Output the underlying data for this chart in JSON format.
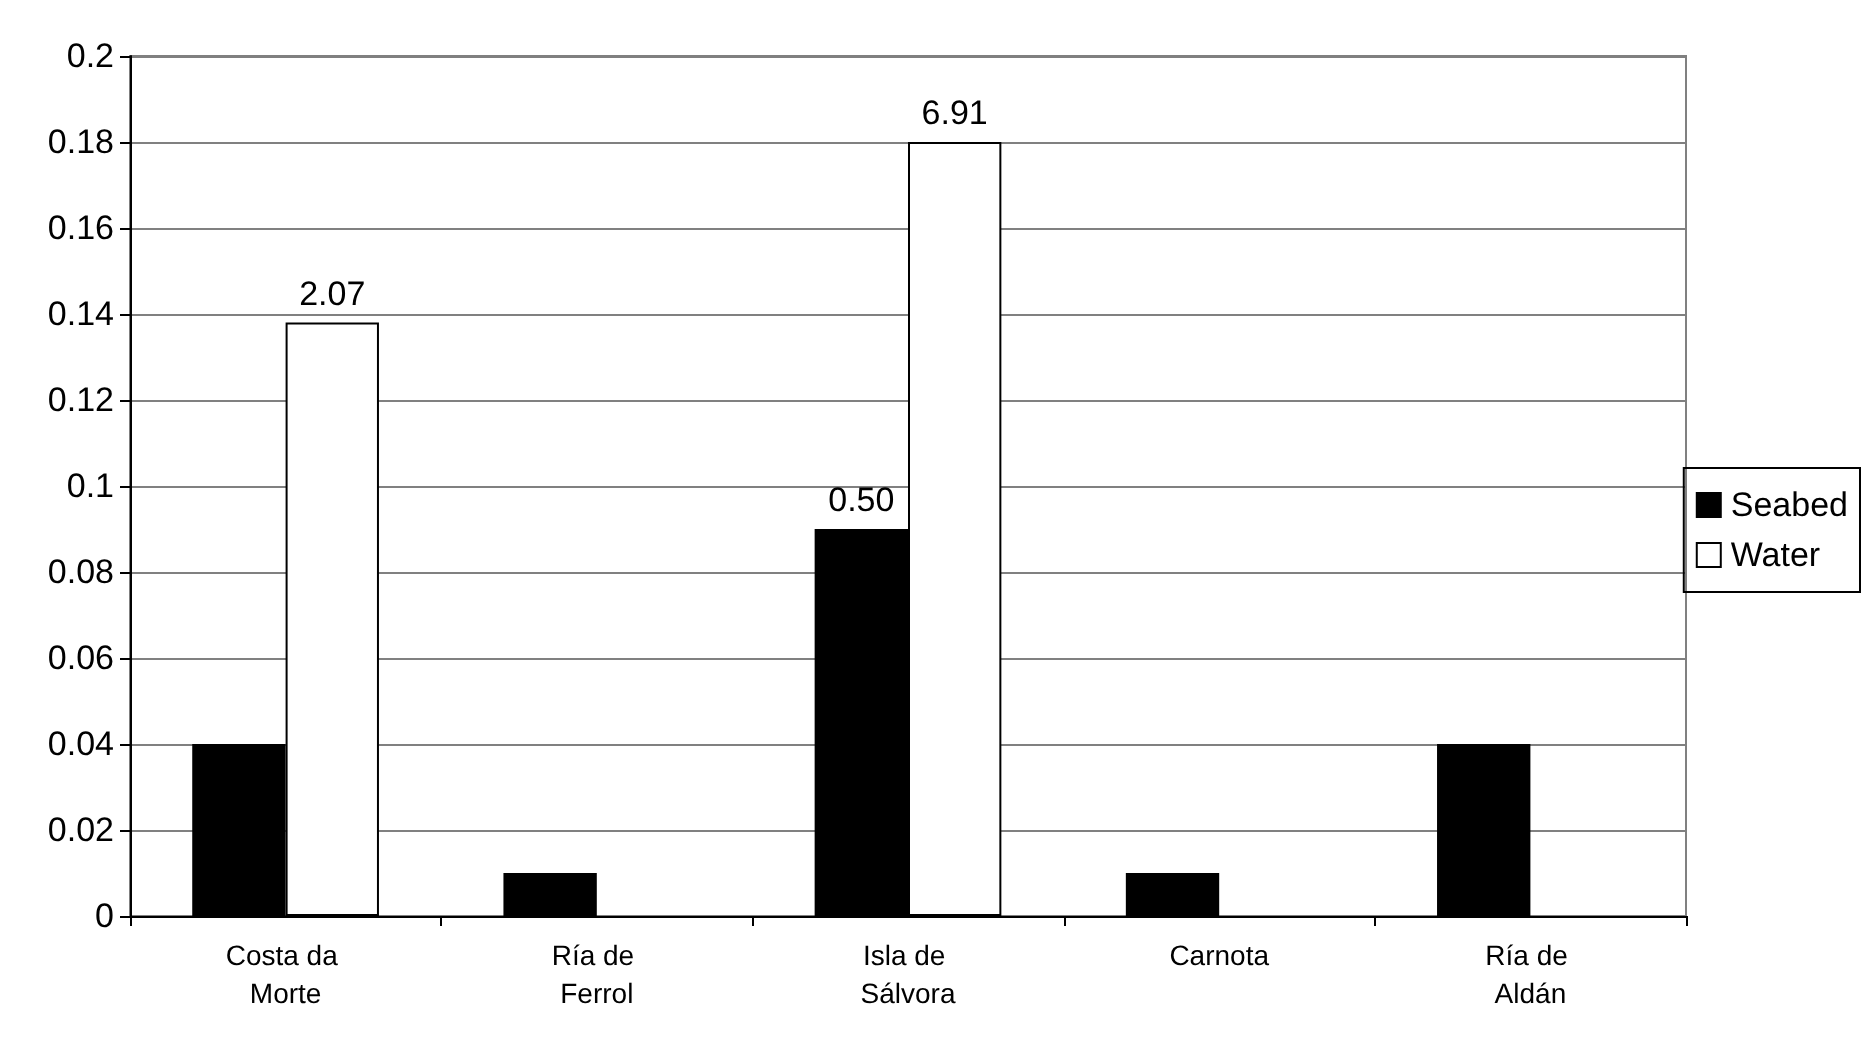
{
  "chart_data": {
    "type": "bar",
    "categories": [
      "Costa da Morte",
      "Ría de Ferrol",
      "Isla de Sálvora",
      "Carnota",
      "Ría de Aldán"
    ],
    "series": [
      {
        "name": "Seabed",
        "color": "#000000",
        "values": [
          0.04,
          0.01,
          0.09,
          0.01,
          0.04
        ]
      },
      {
        "name": "Water",
        "color": "#ffffff",
        "values": [
          0.138,
          null,
          0.18,
          null,
          null
        ]
      }
    ],
    "annotations": [
      {
        "text": "2.07",
        "x": "Costa da Morte",
        "y": 0.138
      },
      {
        "text": "0.50",
        "x": "Isla de Sálvora",
        "y": 0.09
      },
      {
        "text": "6.91",
        "x": "Isla de Sálvora",
        "y": 0.18
      }
    ],
    "ylim": [
      0,
      0.2
    ],
    "yticks": [
      0,
      0.02,
      0.04,
      0.06,
      0.08,
      0.1,
      0.12,
      0.14,
      0.16,
      0.18,
      0.2
    ],
    "grid": "y",
    "legend": "right"
  }
}
